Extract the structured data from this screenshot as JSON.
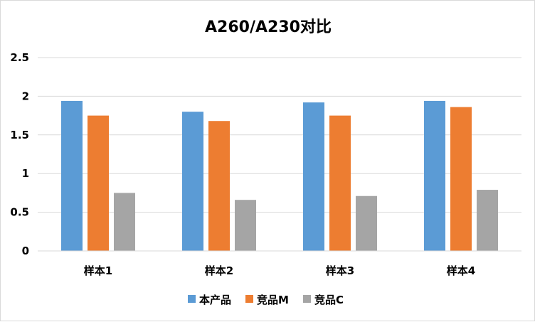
{
  "chart_data": {
    "type": "bar",
    "title": "A260/A230对比",
    "xlabel": "",
    "ylabel": "",
    "categories": [
      "样本1",
      "样本2",
      "样本3",
      "样本4"
    ],
    "series": [
      {
        "name": "本产品",
        "color": "#5b9bd5",
        "values": [
          1.94,
          1.8,
          1.92,
          1.94
        ]
      },
      {
        "name": "竞品M",
        "color": "#ed7d31",
        "values": [
          1.75,
          1.68,
          1.75,
          1.86
        ]
      },
      {
        "name": "竞品C",
        "color": "#a5a5a5",
        "values": [
          0.75,
          0.66,
          0.71,
          0.79
        ]
      }
    ],
    "ylim": [
      0,
      2.5
    ],
    "yticks": [
      "0",
      "0.5",
      "1",
      "1.5",
      "2",
      "2.5"
    ],
    "grid": true,
    "legend_position": "bottom"
  }
}
